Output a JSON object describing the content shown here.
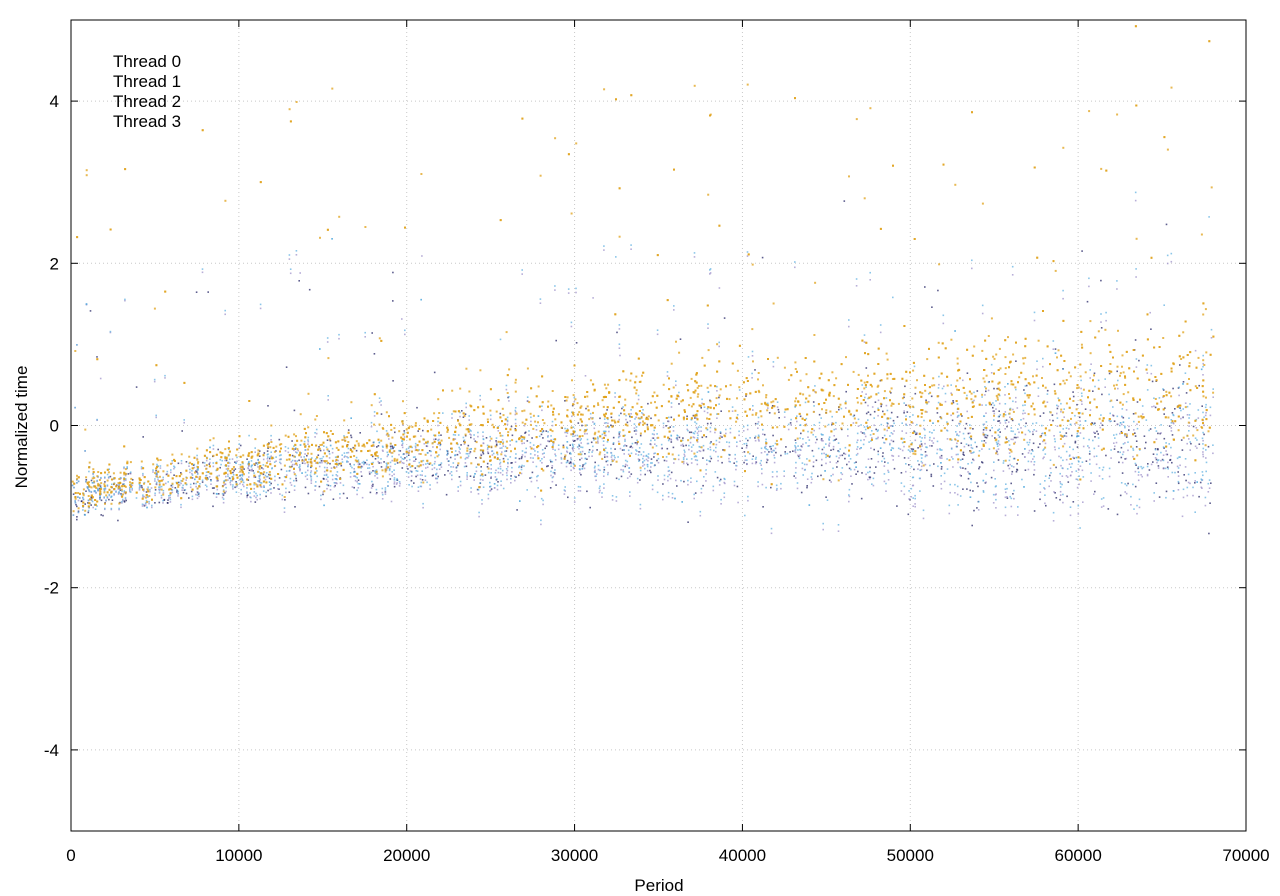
{
  "chart_data": {
    "type": "scatter",
    "title": "",
    "xlabel": "Period",
    "ylabel": "Normalized time",
    "xlim": [
      0,
      70000
    ],
    "ylim": [
      -5,
      5
    ],
    "x_ticks": [
      0,
      10000,
      20000,
      30000,
      40000,
      50000,
      60000,
      70000
    ],
    "x_tick_labels": [
      "0",
      "10000",
      "20000",
      "30000",
      "40000",
      "50000",
      "60000",
      "70000"
    ],
    "y_ticks": [
      -4,
      -2,
      0,
      2,
      4
    ],
    "y_tick_labels": [
      "-4",
      "-2",
      "0",
      "2",
      "4"
    ],
    "grid": true,
    "grid_style": "dotted",
    "legend_position": "top-left",
    "x_max_data": 68000,
    "series": [
      {
        "name": "Thread 0",
        "color": "#1a1a5e",
        "marker": "dot",
        "approx_trend": [
          [
            0,
            -0.9
          ],
          [
            10000,
            -0.6
          ],
          [
            20000,
            -0.45
          ],
          [
            30000,
            -0.3
          ],
          [
            40000,
            -0.25
          ],
          [
            50000,
            -0.2
          ],
          [
            60000,
            -0.2
          ],
          [
            68000,
            -0.2
          ]
        ]
      },
      {
        "name": "Thread 1",
        "color": "#9a8dc8",
        "marker": "dot",
        "approx_trend": [
          [
            0,
            -0.85
          ],
          [
            10000,
            -0.6
          ],
          [
            20000,
            -0.45
          ],
          [
            30000,
            -0.35
          ],
          [
            40000,
            -0.3
          ],
          [
            50000,
            -0.3
          ],
          [
            60000,
            -0.3
          ],
          [
            68000,
            -0.3
          ]
        ]
      },
      {
        "name": "Thread 2",
        "color": "#5aaee0",
        "marker": "dot",
        "approx_trend": [
          [
            0,
            -0.85
          ],
          [
            10000,
            -0.55
          ],
          [
            20000,
            -0.4
          ],
          [
            30000,
            -0.3
          ],
          [
            40000,
            -0.25
          ],
          [
            50000,
            -0.2
          ],
          [
            60000,
            -0.2
          ],
          [
            68000,
            -0.2
          ]
        ]
      },
      {
        "name": "Thread 3",
        "color": "#e0a21a",
        "marker": "dot",
        "approx_trend": [
          [
            0,
            -0.8
          ],
          [
            10000,
            -0.45
          ],
          [
            20000,
            -0.15
          ],
          [
            30000,
            0.1
          ],
          [
            40000,
            0.3
          ],
          [
            50000,
            0.35
          ],
          [
            60000,
            0.4
          ],
          [
            68000,
            0.45
          ]
        ]
      }
    ]
  }
}
